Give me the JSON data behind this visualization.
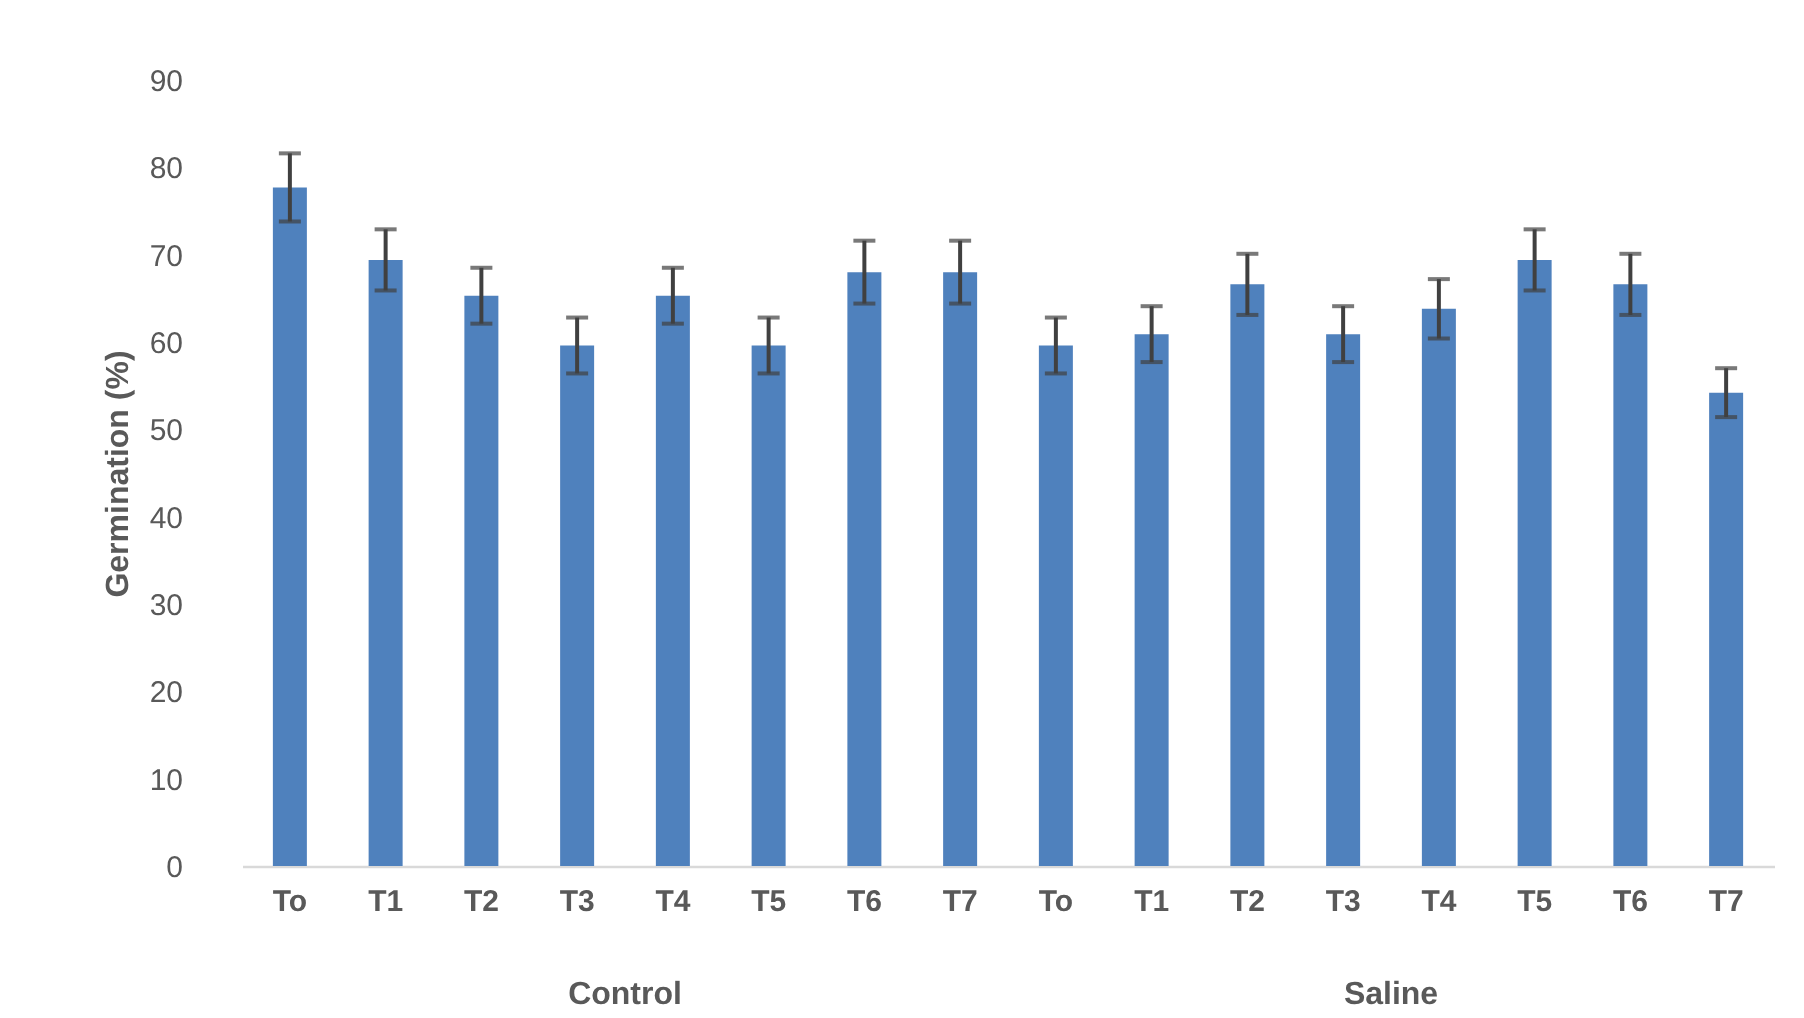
{
  "chart_data": {
    "type": "bar",
    "ylabel": "Germination (%)",
    "categories": [
      "To",
      "T1",
      "T2",
      "T3",
      "T4",
      "T5",
      "T6",
      "T7",
      "To",
      "T1",
      "T2",
      "T3",
      "T4",
      "T5",
      "T6",
      "T7"
    ],
    "values": [
      77.7,
      69.4,
      65.3,
      59.6,
      65.3,
      59.6,
      68.0,
      68.0,
      59.6,
      60.9,
      66.6,
      60.9,
      63.8,
      69.4,
      66.6,
      54.2
    ],
    "errors": [
      3.9,
      3.5,
      3.2,
      3.2,
      3.2,
      3.2,
      3.6,
      3.6,
      3.2,
      3.2,
      3.5,
      3.2,
      3.4,
      3.5,
      3.5,
      2.8
    ],
    "color": "#4f81bd",
    "ylim": [
      0,
      90
    ],
    "yticks": [
      0,
      10,
      20,
      30,
      40,
      50,
      60,
      70,
      80,
      90
    ],
    "annotations": [
      "Control",
      "Saline"
    ],
    "grid": false
  }
}
